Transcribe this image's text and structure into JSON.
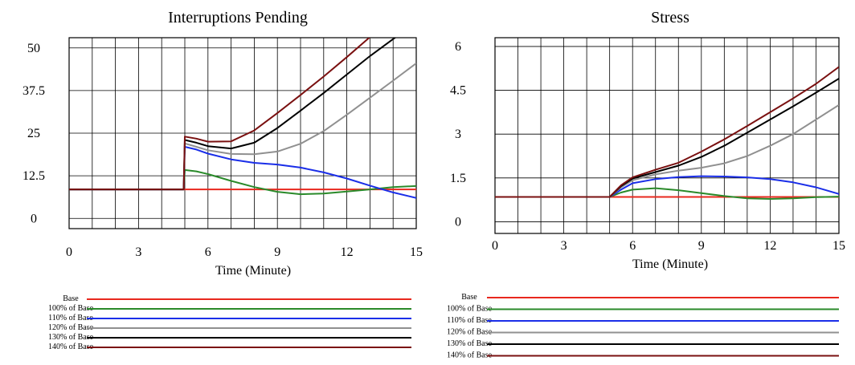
{
  "chart_data": [
    {
      "type": "line",
      "title": "Interruptions Pending",
      "xlabel": "Time (Minute)",
      "ylabel": "",
      "xlim": [
        0,
        15
      ],
      "ylim": [
        -3,
        53
      ],
      "x_ticks": [
        "0",
        "3",
        "6",
        "9",
        "12",
        "15"
      ],
      "y_ticks": [
        {
          "value": 50,
          "label": "50"
        },
        {
          "value": 37.5,
          "label": "37.5"
        },
        {
          "value": 25,
          "label": "25"
        },
        {
          "value": 12.5,
          "label": "12.5"
        },
        {
          "value": 0,
          "label": "0"
        }
      ],
      "grid": true,
      "legend_position": "bottom",
      "series": [
        {
          "name": "Base",
          "color": "#e8281e",
          "points": [
            [
              0,
              8.5
            ],
            [
              15,
              8.5
            ]
          ]
        },
        {
          "name": "100% of Base",
          "color": "#2a8a2a",
          "points": [
            [
              0,
              8.5
            ],
            [
              4.95,
              8.5
            ],
            [
              5.0,
              14.2
            ],
            [
              5.5,
              13.8
            ],
            [
              6,
              13.0
            ],
            [
              7,
              11.0
            ],
            [
              8,
              9.2
            ],
            [
              9,
              7.8
            ],
            [
              10,
              7.1
            ],
            [
              11,
              7.3
            ],
            [
              12,
              7.9
            ],
            [
              13,
              8.5
            ],
            [
              14,
              9.2
            ],
            [
              15,
              9.5
            ]
          ]
        },
        {
          "name": "110% of Base",
          "color": "#1a2ee8",
          "points": [
            [
              0,
              8.5
            ],
            [
              4.95,
              8.5
            ],
            [
              5.0,
              21.0
            ],
            [
              5.5,
              20.2
            ],
            [
              6,
              19.0
            ],
            [
              7,
              17.3
            ],
            [
              8,
              16.3
            ],
            [
              9,
              15.8
            ],
            [
              10,
              14.9
            ],
            [
              11,
              13.5
            ],
            [
              12,
              11.7
            ],
            [
              13,
              9.6
            ],
            [
              14,
              7.6
            ],
            [
              15,
              6.0
            ]
          ]
        },
        {
          "name": "120% of Base",
          "color": "#909090",
          "points": [
            [
              0,
              8.5
            ],
            [
              4.95,
              8.5
            ],
            [
              5.0,
              22.0
            ],
            [
              5.5,
              21.0
            ],
            [
              6,
              20.0
            ],
            [
              7,
              18.9
            ],
            [
              8,
              18.8
            ],
            [
              9,
              19.6
            ],
            [
              10,
              21.9
            ],
            [
              11,
              25.6
            ],
            [
              12,
              30.4
            ],
            [
              13,
              35.4
            ],
            [
              14,
              40.4
            ],
            [
              15,
              45.5
            ]
          ]
        },
        {
          "name": "130% of Base",
          "color": "#000000",
          "points": [
            [
              0,
              8.5
            ],
            [
              4.95,
              8.5
            ],
            [
              5.0,
              23.0
            ],
            [
              5.5,
              22.2
            ],
            [
              6,
              21.2
            ],
            [
              7,
              20.5
            ],
            [
              8,
              22.2
            ],
            [
              9,
              26.5
            ],
            [
              10,
              31.6
            ],
            [
              11,
              36.8
            ],
            [
              12,
              42.2
            ],
            [
              13,
              47.6
            ],
            [
              14,
              52.6
            ],
            [
              14.4,
              54.5
            ]
          ]
        },
        {
          "name": "140% of Base",
          "color": "#7a1010",
          "points": [
            [
              0,
              8.5
            ],
            [
              4.95,
              8.5
            ],
            [
              5.0,
              24.0
            ],
            [
              5.5,
              23.4
            ],
            [
              6,
              22.5
            ],
            [
              7,
              22.6
            ],
            [
              8,
              25.8
            ],
            [
              9,
              30.9
            ],
            [
              10,
              36.2
            ],
            [
              11,
              41.6
            ],
            [
              12,
              47.3
            ],
            [
              13,
              53.2
            ],
            [
              13.3,
              54.5
            ]
          ]
        }
      ]
    },
    {
      "type": "line",
      "title": "Stress",
      "xlabel": "Time (Minute)",
      "ylabel": "",
      "xlim": [
        0,
        15
      ],
      "ylim": [
        -0.4,
        6.3
      ],
      "x_ticks": [
        "0",
        "3",
        "6",
        "9",
        "12",
        "15"
      ],
      "y_ticks": [
        {
          "value": 6,
          "label": "6"
        },
        {
          "value": 4.5,
          "label": "4.5"
        },
        {
          "value": 3,
          "label": "3"
        },
        {
          "value": 1.5,
          "label": "1.5"
        },
        {
          "value": 0,
          "label": "0"
        }
      ],
      "grid": true,
      "legend_position": "bottom",
      "series": [
        {
          "name": "Base",
          "color": "#e8281e",
          "points": [
            [
              0,
              0.85
            ],
            [
              15,
              0.85
            ]
          ]
        },
        {
          "name": "100% of Base",
          "color": "#2a8a2a",
          "points": [
            [
              0,
              0.85
            ],
            [
              5,
              0.85
            ],
            [
              5.5,
              1.0
            ],
            [
              6,
              1.1
            ],
            [
              7,
              1.15
            ],
            [
              8,
              1.08
            ],
            [
              9,
              0.98
            ],
            [
              10,
              0.88
            ],
            [
              11,
              0.8
            ],
            [
              12,
              0.78
            ],
            [
              13,
              0.8
            ],
            [
              14,
              0.84
            ],
            [
              15,
              0.86
            ]
          ]
        },
        {
          "name": "110% of Base",
          "color": "#1a2ee8",
          "points": [
            [
              0,
              0.85
            ],
            [
              5,
              0.85
            ],
            [
              5.5,
              1.1
            ],
            [
              6,
              1.32
            ],
            [
              7,
              1.46
            ],
            [
              8,
              1.53
            ],
            [
              9,
              1.56
            ],
            [
              10,
              1.55
            ],
            [
              11,
              1.52
            ],
            [
              12,
              1.46
            ],
            [
              13,
              1.35
            ],
            [
              14,
              1.18
            ],
            [
              15,
              0.95
            ]
          ]
        },
        {
          "name": "120% of Base",
          "color": "#909090",
          "points": [
            [
              0,
              0.85
            ],
            [
              5,
              0.85
            ],
            [
              5.5,
              1.18
            ],
            [
              6,
              1.42
            ],
            [
              7,
              1.62
            ],
            [
              8,
              1.75
            ],
            [
              9,
              1.85
            ],
            [
              10,
              2.0
            ],
            [
              11,
              2.25
            ],
            [
              12,
              2.6
            ],
            [
              13,
              3.0
            ],
            [
              14,
              3.5
            ],
            [
              15,
              4.0
            ]
          ]
        },
        {
          "name": "130% of Base",
          "color": "#000000",
          "points": [
            [
              0,
              0.85
            ],
            [
              5,
              0.85
            ],
            [
              5.5,
              1.22
            ],
            [
              6,
              1.48
            ],
            [
              7,
              1.7
            ],
            [
              8,
              1.92
            ],
            [
              9,
              2.22
            ],
            [
              10,
              2.6
            ],
            [
              11,
              3.05
            ],
            [
              12,
              3.5
            ],
            [
              13,
              3.95
            ],
            [
              14,
              4.42
            ],
            [
              15,
              4.9
            ]
          ]
        },
        {
          "name": "140% of Base",
          "color": "#7a1010",
          "points": [
            [
              0,
              0.85
            ],
            [
              5,
              0.85
            ],
            [
              5.5,
              1.25
            ],
            [
              6,
              1.52
            ],
            [
              7,
              1.78
            ],
            [
              8,
              2.02
            ],
            [
              9,
              2.4
            ],
            [
              10,
              2.82
            ],
            [
              11,
              3.28
            ],
            [
              12,
              3.75
            ],
            [
              13,
              4.22
            ],
            [
              14,
              4.72
            ],
            [
              15,
              5.3
            ]
          ]
        }
      ]
    }
  ]
}
